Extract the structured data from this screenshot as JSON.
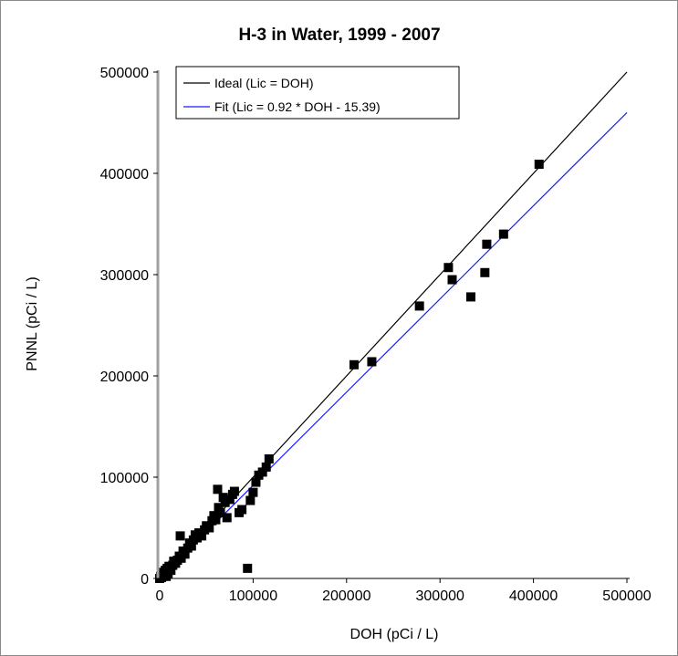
{
  "chart_data": {
    "type": "scatter",
    "title": "H-3 in Water, 1999 - 2007",
    "xlabel": "DOH (pCi / L)",
    "ylabel": "PNNL (pCi / L)",
    "xlim": [
      0,
      500000
    ],
    "ylim": [
      0,
      500000
    ],
    "xticks": [
      0,
      100000,
      200000,
      300000,
      400000,
      500000
    ],
    "yticks": [
      0,
      100000,
      200000,
      300000,
      400000,
      500000
    ],
    "xtick_labels": [
      "0",
      "100000",
      "200000",
      "300000",
      "400000",
      "500000"
    ],
    "ytick_labels": [
      "0",
      "100000",
      "200000",
      "300000",
      "400000",
      "500000"
    ],
    "grid": false,
    "legend_position": "top-left",
    "lines": [
      {
        "name": "Ideal (Lic = DOH)",
        "color": "#000000",
        "slope": 1.0,
        "intercept": 0
      },
      {
        "name": "Fit (Lic = 0.92 * DOH - 15.39)",
        "color": "#1a1aff",
        "slope": 0.92,
        "intercept": -15.39
      }
    ],
    "points_color": "#000000",
    "points": [
      {
        "x": 0,
        "y": 0
      },
      {
        "x": 1000,
        "y": 2000
      },
      {
        "x": 2000,
        "y": 1000
      },
      {
        "x": 3000,
        "y": 4000
      },
      {
        "x": 4000,
        "y": 6000
      },
      {
        "x": 5000,
        "y": 3000
      },
      {
        "x": 6000,
        "y": 8000
      },
      {
        "x": 7000,
        "y": 2000
      },
      {
        "x": 8000,
        "y": 10000
      },
      {
        "x": 9000,
        "y": 5000
      },
      {
        "x": 10000,
        "y": 12000
      },
      {
        "x": 12000,
        "y": 8000
      },
      {
        "x": 14000,
        "y": 13000
      },
      {
        "x": 15000,
        "y": 17000
      },
      {
        "x": 17000,
        "y": 15000
      },
      {
        "x": 19000,
        "y": 18000
      },
      {
        "x": 21000,
        "y": 22000
      },
      {
        "x": 23000,
        "y": 20000
      },
      {
        "x": 25000,
        "y": 27000
      },
      {
        "x": 27000,
        "y": 24000
      },
      {
        "x": 22000,
        "y": 42000
      },
      {
        "x": 30000,
        "y": 30000
      },
      {
        "x": 32000,
        "y": 35000
      },
      {
        "x": 34000,
        "y": 32000
      },
      {
        "x": 36000,
        "y": 38000
      },
      {
        "x": 38000,
        "y": 43000
      },
      {
        "x": 40000,
        "y": 40000
      },
      {
        "x": 42000,
        "y": 45000
      },
      {
        "x": 45000,
        "y": 42000
      },
      {
        "x": 48000,
        "y": 48000
      },
      {
        "x": 50000,
        "y": 52000
      },
      {
        "x": 53000,
        "y": 50000
      },
      {
        "x": 56000,
        "y": 57000
      },
      {
        "x": 58000,
        "y": 62000
      },
      {
        "x": 60000,
        "y": 58000
      },
      {
        "x": 62000,
        "y": 88000
      },
      {
        "x": 63000,
        "y": 70000
      },
      {
        "x": 65000,
        "y": 65000
      },
      {
        "x": 68000,
        "y": 80000
      },
      {
        "x": 70000,
        "y": 75000
      },
      {
        "x": 72000,
        "y": 60000
      },
      {
        "x": 75000,
        "y": 78000
      },
      {
        "x": 78000,
        "y": 83000
      },
      {
        "x": 80000,
        "y": 86000
      },
      {
        "x": 85000,
        "y": 65000
      },
      {
        "x": 88000,
        "y": 68000
      },
      {
        "x": 94000,
        "y": 10000
      },
      {
        "x": 97000,
        "y": 77000
      },
      {
        "x": 100000,
        "y": 85000
      },
      {
        "x": 103000,
        "y": 95000
      },
      {
        "x": 106000,
        "y": 102000
      },
      {
        "x": 110000,
        "y": 105000
      },
      {
        "x": 114000,
        "y": 110000
      },
      {
        "x": 117000,
        "y": 118000
      },
      {
        "x": 208000,
        "y": 211000
      },
      {
        "x": 227000,
        "y": 214000
      },
      {
        "x": 278000,
        "y": 269000
      },
      {
        "x": 309000,
        "y": 307000
      },
      {
        "x": 313000,
        "y": 295000
      },
      {
        "x": 333000,
        "y": 278000
      },
      {
        "x": 348000,
        "y": 302000
      },
      {
        "x": 350000,
        "y": 330000
      },
      {
        "x": 368000,
        "y": 340000
      },
      {
        "x": 406000,
        "y": 409000
      }
    ]
  }
}
